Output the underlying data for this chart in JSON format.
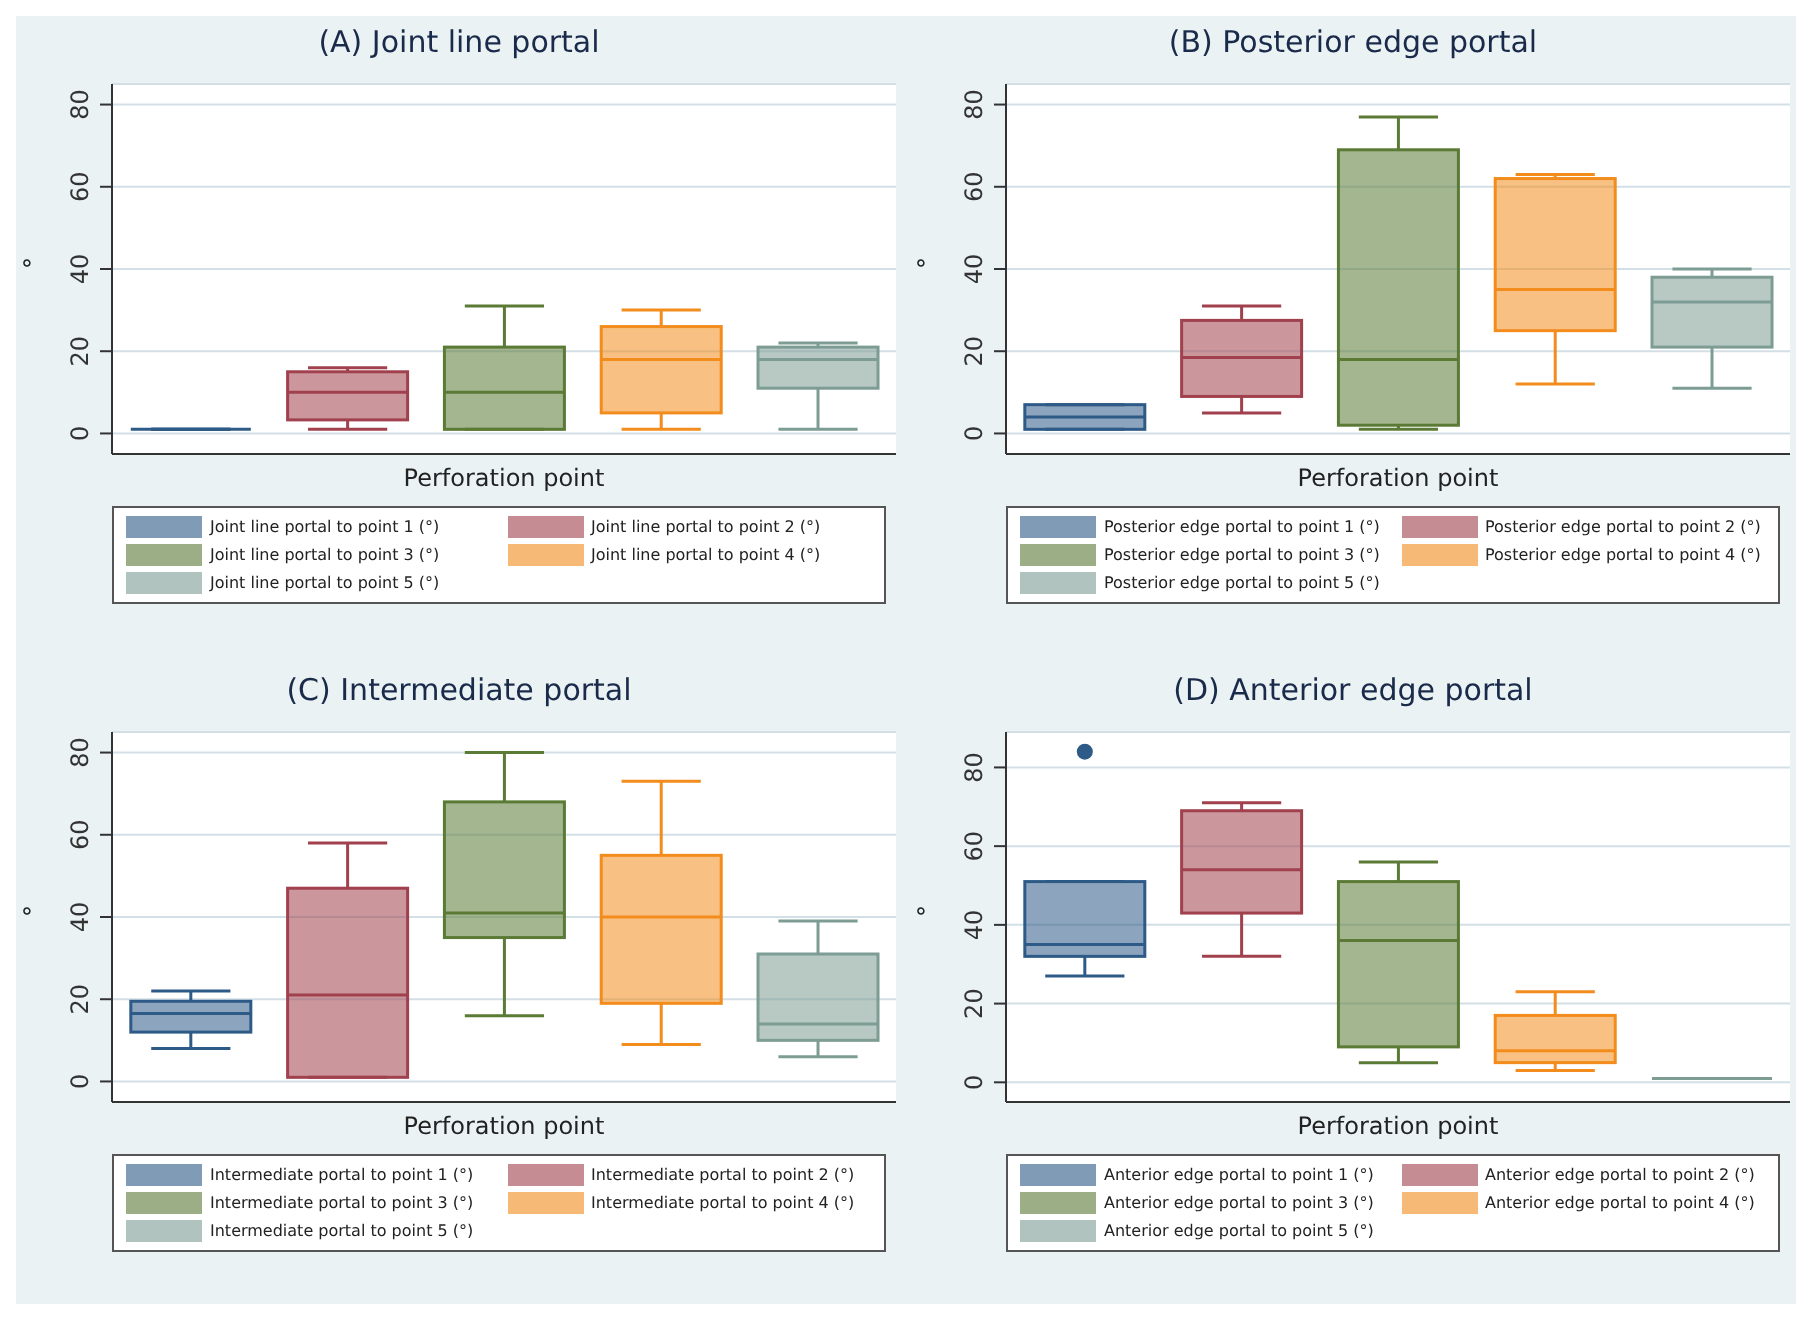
{
  "chart_data": [
    {
      "type": "box",
      "title": "(A)  Joint line portal",
      "xlabel": "Perforation point",
      "ylabel": "°",
      "categories": [
        null
      ],
      "ylim": [
        -5,
        85
      ],
      "yticks": [
        0,
        20,
        40,
        60,
        80
      ],
      "grid": "y",
      "legend": "bottom",
      "tick_labels": "y",
      "series": [
        {
          "name": "Joint line portal to point 1 (°)",
          "color": "#2d5a86",
          "boxes": [
            {
              "low": 1,
              "q1": 1,
              "median": 1,
              "q3": 1,
              "high": 1
            }
          ]
        },
        {
          "name": "Joint line portal to point 2 (°)",
          "color": "#a0414d",
          "boxes": [
            {
              "low": 1,
              "q1": 3.3,
              "median": 10,
              "q3": 15,
              "high": 16
            }
          ]
        },
        {
          "name": "Joint line portal to point 3 (°)",
          "color": "#5a7a35",
          "boxes": [
            {
              "low": 1,
              "q1": 1,
              "median": 10,
              "q3": 21,
              "high": 31
            }
          ]
        },
        {
          "name": "Joint line portal to point 4 (°)",
          "color": "#f28c1c",
          "boxes": [
            {
              "low": 1,
              "q1": 5,
              "median": 18,
              "q3": 26,
              "high": 30
            }
          ]
        },
        {
          "name": "Joint line portal to point 5 (°)",
          "color": "#7d9c93",
          "boxes": [
            {
              "low": 1,
              "q1": 11,
              "median": 18,
              "q3": 21,
              "high": 22
            }
          ]
        }
      ]
    },
    {
      "type": "box",
      "title": "(B)  Posterior edge portal",
      "xlabel": "Perforation point",
      "ylabel": "°",
      "categories": [
        null
      ],
      "ylim": [
        -5,
        85
      ],
      "yticks": [
        0,
        20,
        40,
        60,
        80
      ],
      "grid": "y",
      "legend": "bottom",
      "tick_labels": "y",
      "series": [
        {
          "name": "Posterior edge portal to point 1 (°)",
          "color": "#2d5a86",
          "boxes": [
            {
              "low": 1,
              "q1": 1,
              "median": 4,
              "q3": 7,
              "high": 7
            }
          ]
        },
        {
          "name": "Posterior edge portal to point 2 (°)",
          "color": "#a0414d",
          "boxes": [
            {
              "low": 5,
              "q1": 9,
              "median": 18.5,
              "q3": 27.5,
              "high": 31
            }
          ]
        },
        {
          "name": "Posterior edge portal to point 3 (°)",
          "color": "#5a7a35",
          "boxes": [
            {
              "low": 1,
              "q1": 2,
              "median": 18,
              "q3": 69,
              "high": 77
            }
          ]
        },
        {
          "name": "Posterior edge portal to point 4 (°)",
          "color": "#f28c1c",
          "boxes": [
            {
              "low": 12,
              "q1": 25,
              "median": 35,
              "q3": 62,
              "high": 63
            }
          ]
        },
        {
          "name": "Posterior edge portal to point 5 (°)",
          "color": "#7d9c93",
          "boxes": [
            {
              "low": 11,
              "q1": 21,
              "median": 32,
              "q3": 38,
              "high": 40
            }
          ]
        }
      ]
    },
    {
      "type": "box",
      "title": "(C)  Intermediate portal",
      "xlabel": "Perforation point",
      "ylabel": "°",
      "categories": [
        null
      ],
      "ylim": [
        -5,
        85
      ],
      "yticks": [
        0,
        20,
        40,
        60,
        80
      ],
      "grid": "y",
      "legend": "bottom",
      "tick_labels": "y",
      "series": [
        {
          "name": "Intermediate portal to point 1 (°)",
          "color": "#2d5a86",
          "boxes": [
            {
              "low": 8,
              "q1": 12,
              "median": 16.5,
              "q3": 19.5,
              "high": 22
            }
          ]
        },
        {
          "name": "Intermediate portal to point 2 (°)",
          "color": "#a0414d",
          "boxes": [
            {
              "low": 1,
              "q1": 1,
              "median": 21,
              "q3": 47,
              "high": 58
            }
          ]
        },
        {
          "name": "Intermediate portal to point 3 (°)",
          "color": "#5a7a35",
          "boxes": [
            {
              "low": 16,
              "q1": 35,
              "median": 41,
              "q3": 68,
              "high": 80
            }
          ]
        },
        {
          "name": "Intermediate portal to point 4 (°)",
          "color": "#f28c1c",
          "boxes": [
            {
              "low": 9,
              "q1": 19,
              "median": 40,
              "q3": 55,
              "high": 73
            }
          ]
        },
        {
          "name": "Intermediate portal to point 5 (°)",
          "color": "#7d9c93",
          "boxes": [
            {
              "low": 6,
              "q1": 10,
              "median": 14,
              "q3": 31,
              "high": 39
            }
          ]
        }
      ]
    },
    {
      "type": "box",
      "title": "(D)  Anterior edge portal",
      "xlabel": "Perforation point",
      "ylabel": "°",
      "categories": [
        null
      ],
      "ylim": [
        -5,
        89
      ],
      "yticks": [
        0,
        20,
        40,
        60,
        80
      ],
      "grid": "y",
      "legend": "bottom",
      "tick_labels": "y",
      "series": [
        {
          "name": "Anterior edge portal to point 1 (°)",
          "color": "#2d5a86",
          "boxes": [
            {
              "low": 27,
              "q1": 32,
              "median": 35,
              "q3": 51,
              "high": 51,
              "outliers": [
                84
              ]
            }
          ]
        },
        {
          "name": "Anterior edge portal to point 2 (°)",
          "color": "#a0414d",
          "boxes": [
            {
              "low": 32,
              "q1": 43,
              "median": 54,
              "q3": 69,
              "high": 71
            }
          ]
        },
        {
          "name": "Anterior edge portal to point 3 (°)",
          "color": "#5a7a35",
          "boxes": [
            {
              "low": 5,
              "q1": 9,
              "median": 36,
              "q3": 51,
              "high": 56
            }
          ]
        },
        {
          "name": "Anterior edge portal to point 4 (°)",
          "color": "#f28c1c",
          "boxes": [
            {
              "low": 3,
              "q1": 5,
              "median": 8,
              "q3": 17,
              "high": 23
            }
          ]
        },
        {
          "name": "Anterior edge portal to point 5 (°)",
          "color": "#7d9c93",
          "boxes": [
            {
              "low": 1,
              "q1": 1,
              "median": 1,
              "q3": 1,
              "high": 1
            }
          ]
        }
      ]
    }
  ]
}
